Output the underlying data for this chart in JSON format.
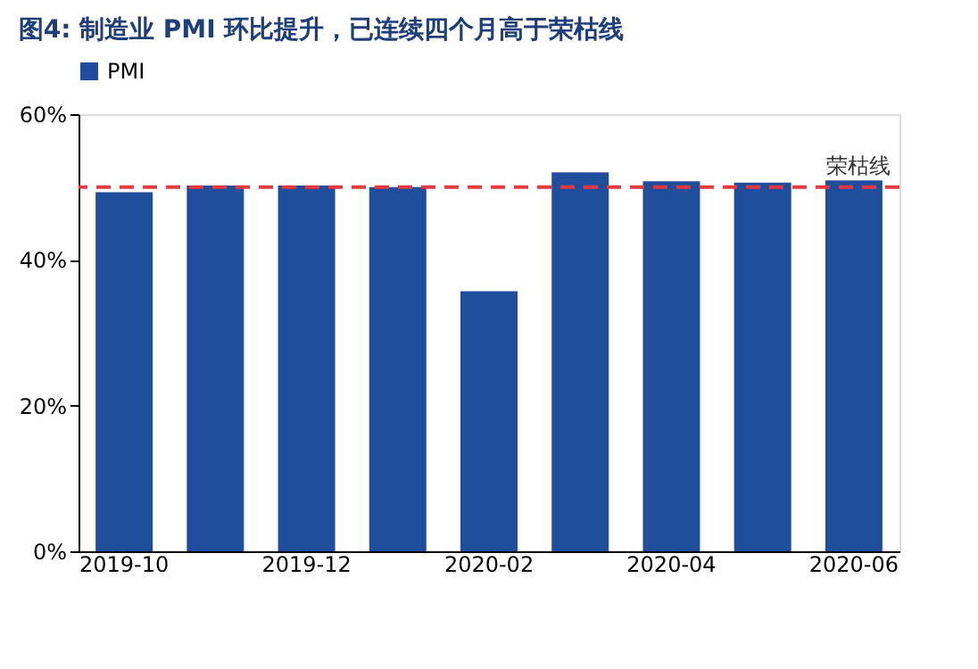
{
  "chart_data": {
    "type": "bar",
    "title": "图4: 制造业 PMI 环比提升，已连续四个月高于荣枯线",
    "categories": [
      "2019-10",
      null,
      "2019-12",
      null,
      "2020-02",
      null,
      "2020-04",
      null,
      "2020-06"
    ],
    "series": [
      {
        "name": "PMI",
        "color": "#1f4e9c",
        "values": [
          49.3,
          50.2,
          50.2,
          50.0,
          35.7,
          52.0,
          50.8,
          50.6,
          50.9
        ]
      }
    ],
    "ylim": [
      0,
      60
    ],
    "yticks": [
      {
        "value": 0,
        "label": "0%"
      },
      {
        "value": 20,
        "label": "20%"
      },
      {
        "value": 40,
        "label": "40%"
      },
      {
        "value": 60,
        "label": "60%"
      }
    ],
    "ref_lines": [
      {
        "axis": "y",
        "value": 50,
        "label": "荣枯线",
        "color": "#e8383d",
        "line_style": "dashed"
      }
    ],
    "legend": "top",
    "grid": false
  }
}
